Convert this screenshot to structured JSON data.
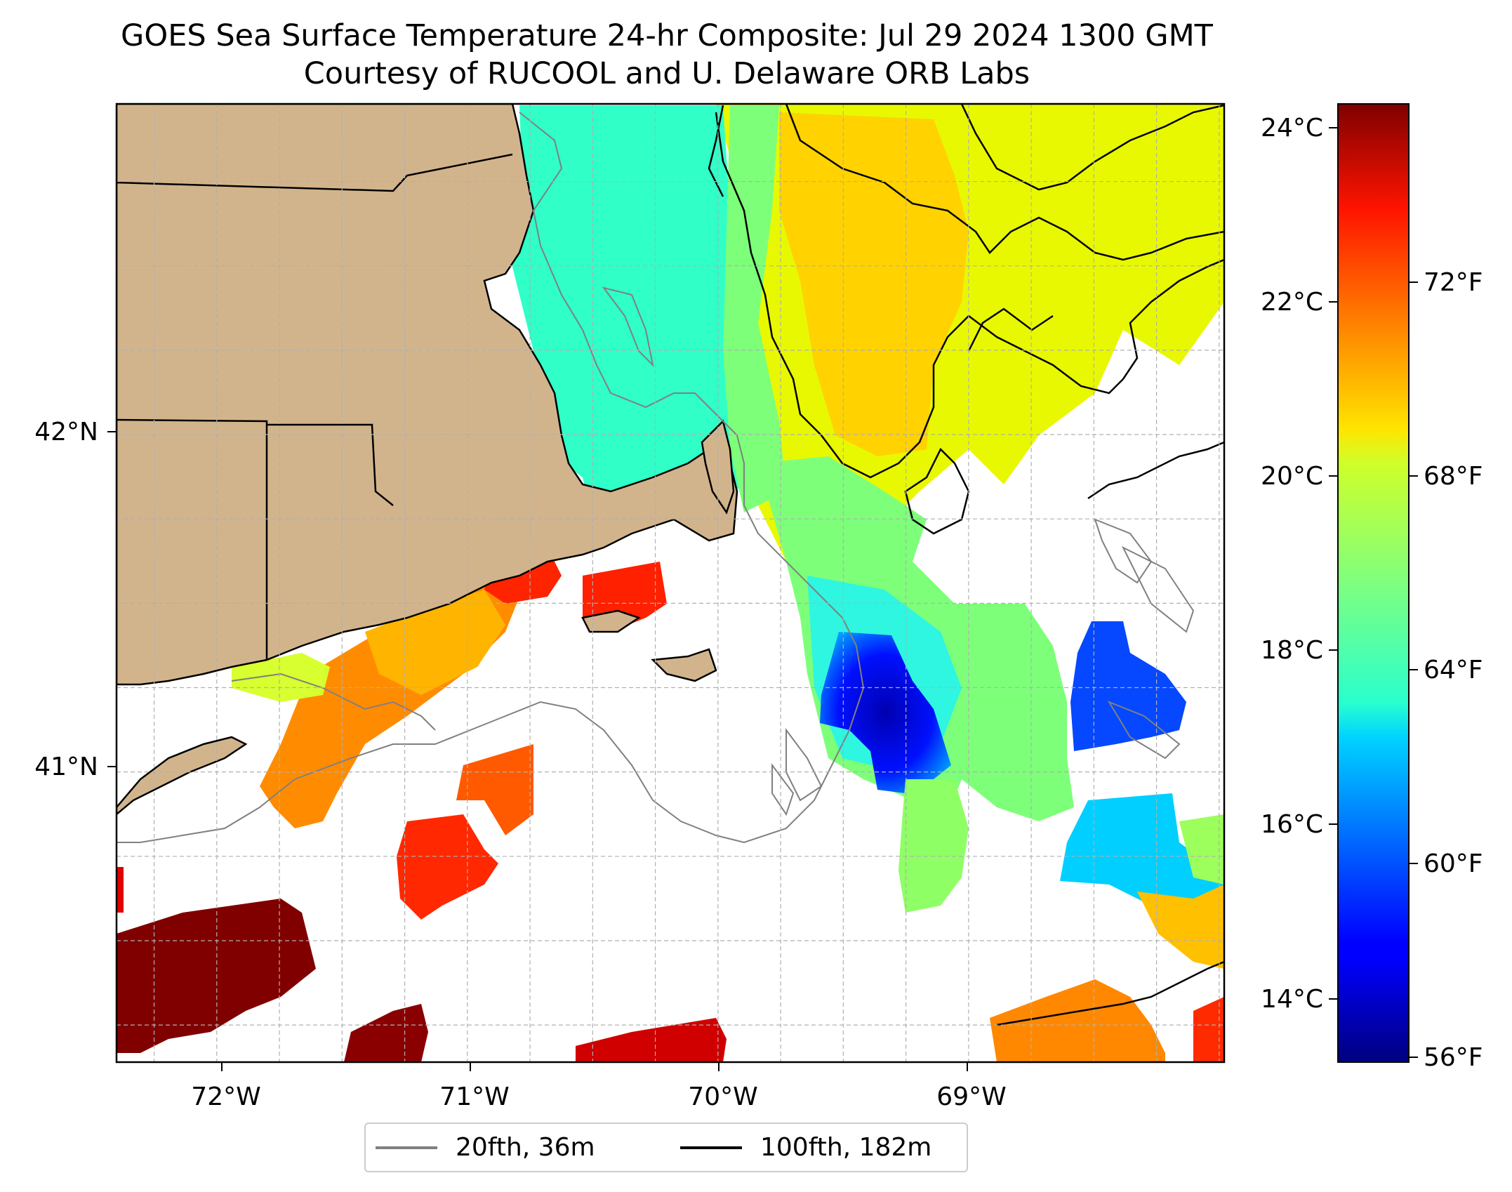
{
  "title": {
    "line1": "GOES Sea Surface Temperature 24-hr Composite: Jul 29 2024 1300 GMT",
    "line2": "Courtesy of RUCOOL and U. Delaware ORB Labs"
  },
  "map": {
    "lon_range": [
      -72.4,
      -67.98
    ],
    "lat_range": [
      40.14,
      42.98
    ],
    "x_ticks": [
      "72°W",
      "71°W",
      "70°W",
      "69°W"
    ],
    "y_ticks": [
      "42°N",
      "41°N"
    ],
    "land_color": "#d2b48c",
    "gridlines": true
  },
  "colorbar": {
    "celsius_ticks": [
      "24°C",
      "22°C",
      "20°C",
      "18°C",
      "16°C",
      "14°C"
    ],
    "fahrenheit_ticks": [
      "72°F",
      "68°F",
      "64°F",
      "60°F",
      "56°F"
    ],
    "colormap": "jet",
    "range_c": [
      13.3,
      24.3
    ]
  },
  "legend": {
    "items": [
      {
        "label": "20fth, 36m",
        "color": "#808080"
      },
      {
        "label": "100fth, 182m",
        "color": "#000000"
      }
    ]
  }
}
